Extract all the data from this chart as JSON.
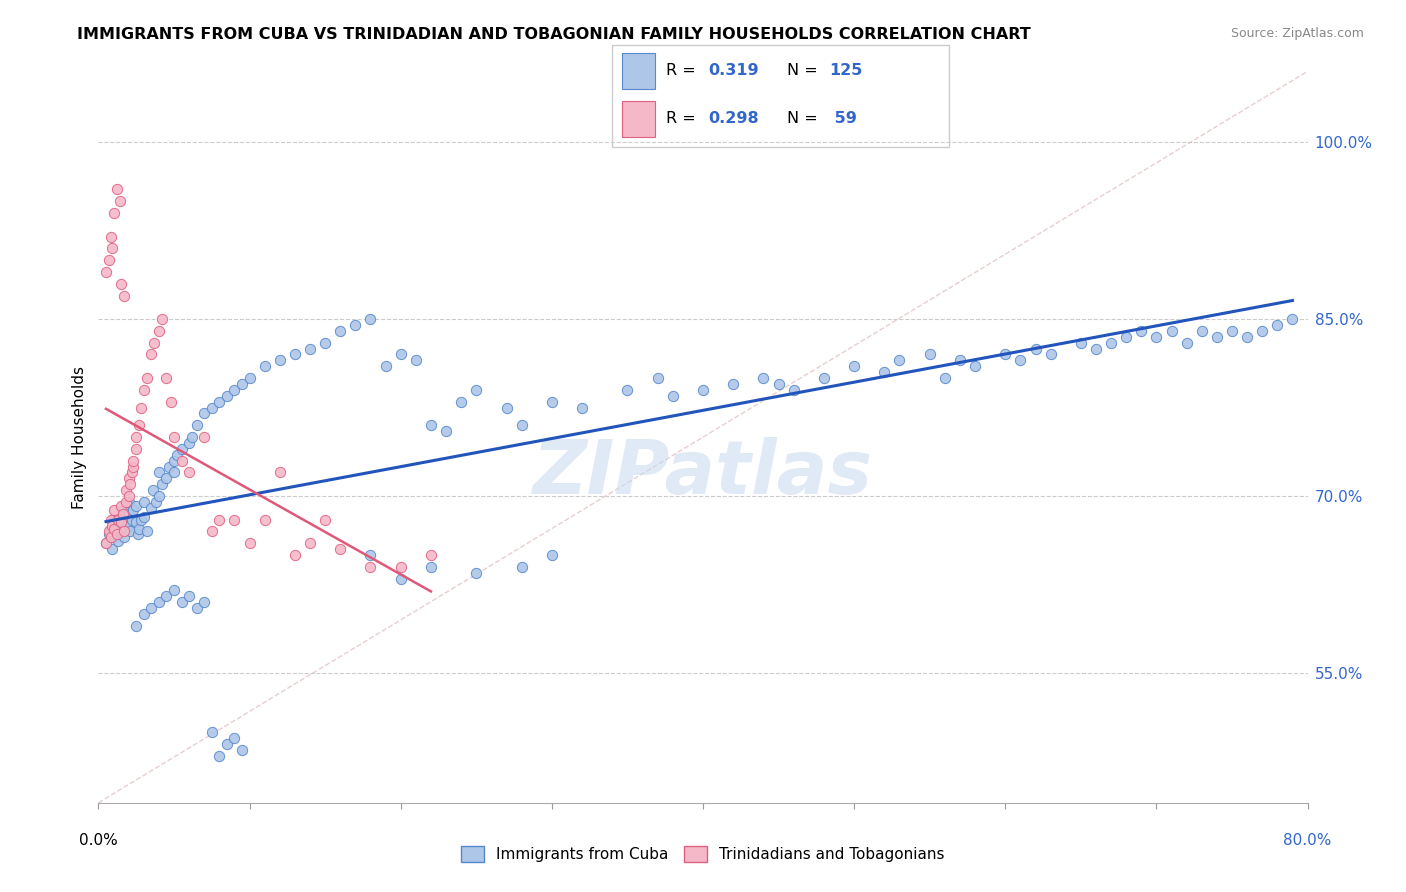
{
  "title": "IMMIGRANTS FROM CUBA VS TRINIDADIAN AND TOBAGONIAN FAMILY HOUSEHOLDS CORRELATION CHART",
  "source": "Source: ZipAtlas.com",
  "ylabel": "Family Households",
  "ytick_labels": [
    "55.0%",
    "70.0%",
    "85.0%",
    "100.0%"
  ],
  "ytick_vals": [
    0.55,
    0.7,
    0.85,
    1.0
  ],
  "xlim": [
    0.0,
    0.8
  ],
  "ylim": [
    0.44,
    1.06
  ],
  "cuba_color": "#aec6e8",
  "cuba_edge_color": "#5588cc",
  "tnt_color": "#f4b8c8",
  "tnt_edge_color": "#e06080",
  "trendline_cuba_color": "#2255bb",
  "trendline_tnt_color": "#e05878",
  "trendline_ref_color": "#ddaaaa",
  "legend_label_cuba": "Immigrants from Cuba",
  "legend_label_tnt": "Trinidadians and Tobagonians",
  "R_cuba": "0.319",
  "N_cuba": "125",
  "R_tnt": "0.298",
  "N_tnt": "59",
  "watermark": "ZIPatlas",
  "watermark_color": "#c8d8f0",
  "xtick_color": "#000000",
  "xtick_right_color": "#3366cc",
  "ytick_color": "#3366cc",
  "cuba_x": [
    0.005,
    0.007,
    0.008,
    0.009,
    0.01,
    0.01,
    0.01,
    0.012,
    0.013,
    0.015,
    0.015,
    0.016,
    0.017,
    0.018,
    0.02,
    0.02,
    0.02,
    0.021,
    0.022,
    0.023,
    0.025,
    0.025,
    0.026,
    0.027,
    0.028,
    0.03,
    0.03,
    0.032,
    0.035,
    0.036,
    0.038,
    0.04,
    0.04,
    0.042,
    0.045,
    0.047,
    0.05,
    0.05,
    0.052,
    0.055,
    0.06,
    0.062,
    0.065,
    0.07,
    0.075,
    0.08,
    0.085,
    0.09,
    0.095,
    0.1,
    0.11,
    0.12,
    0.13,
    0.14,
    0.15,
    0.16,
    0.17,
    0.18,
    0.19,
    0.2,
    0.21,
    0.22,
    0.23,
    0.24,
    0.25,
    0.27,
    0.28,
    0.3,
    0.32,
    0.35,
    0.37,
    0.38,
    0.4,
    0.42,
    0.44,
    0.45,
    0.46,
    0.48,
    0.5,
    0.52,
    0.53,
    0.55,
    0.56,
    0.57,
    0.58,
    0.6,
    0.61,
    0.62,
    0.63,
    0.65,
    0.66,
    0.67,
    0.68,
    0.69,
    0.7,
    0.71,
    0.72,
    0.73,
    0.74,
    0.75,
    0.76,
    0.77,
    0.78,
    0.79,
    0.18,
    0.2,
    0.22,
    0.25,
    0.28,
    0.3,
    0.025,
    0.03,
    0.035,
    0.04,
    0.045,
    0.05,
    0.055,
    0.06,
    0.065,
    0.07,
    0.075,
    0.08,
    0.085,
    0.09,
    0.095
  ],
  "cuba_y": [
    0.66,
    0.668,
    0.672,
    0.655,
    0.665,
    0.67,
    0.68,
    0.675,
    0.662,
    0.67,
    0.68,
    0.688,
    0.665,
    0.678,
    0.675,
    0.685,
    0.695,
    0.67,
    0.68,
    0.688,
    0.678,
    0.692,
    0.668,
    0.672,
    0.68,
    0.682,
    0.695,
    0.67,
    0.69,
    0.705,
    0.695,
    0.7,
    0.72,
    0.71,
    0.715,
    0.725,
    0.72,
    0.73,
    0.735,
    0.74,
    0.745,
    0.75,
    0.76,
    0.77,
    0.775,
    0.78,
    0.785,
    0.79,
    0.795,
    0.8,
    0.81,
    0.815,
    0.82,
    0.825,
    0.83,
    0.84,
    0.845,
    0.85,
    0.81,
    0.82,
    0.815,
    0.76,
    0.755,
    0.78,
    0.79,
    0.775,
    0.76,
    0.78,
    0.775,
    0.79,
    0.8,
    0.785,
    0.79,
    0.795,
    0.8,
    0.795,
    0.79,
    0.8,
    0.81,
    0.805,
    0.815,
    0.82,
    0.8,
    0.815,
    0.81,
    0.82,
    0.815,
    0.825,
    0.82,
    0.83,
    0.825,
    0.83,
    0.835,
    0.84,
    0.835,
    0.84,
    0.83,
    0.84,
    0.835,
    0.84,
    0.835,
    0.84,
    0.845,
    0.85,
    0.65,
    0.63,
    0.64,
    0.635,
    0.64,
    0.65,
    0.59,
    0.6,
    0.605,
    0.61,
    0.615,
    0.62,
    0.61,
    0.615,
    0.605,
    0.61,
    0.5,
    0.48,
    0.49,
    0.495,
    0.485
  ],
  "tnt_x": [
    0.005,
    0.007,
    0.008,
    0.008,
    0.009,
    0.01,
    0.01,
    0.012,
    0.013,
    0.015,
    0.015,
    0.016,
    0.017,
    0.018,
    0.018,
    0.02,
    0.02,
    0.021,
    0.022,
    0.023,
    0.023,
    0.025,
    0.025,
    0.027,
    0.028,
    0.03,
    0.032,
    0.035,
    0.037,
    0.04,
    0.042,
    0.045,
    0.048,
    0.05,
    0.055,
    0.06,
    0.07,
    0.075,
    0.08,
    0.09,
    0.1,
    0.11,
    0.12,
    0.13,
    0.14,
    0.15,
    0.16,
    0.18,
    0.2,
    0.22,
    0.005,
    0.007,
    0.008,
    0.009,
    0.01,
    0.012,
    0.014,
    0.015,
    0.017
  ],
  "tnt_y": [
    0.66,
    0.67,
    0.665,
    0.68,
    0.675,
    0.672,
    0.688,
    0.668,
    0.68,
    0.678,
    0.692,
    0.685,
    0.67,
    0.695,
    0.705,
    0.7,
    0.715,
    0.71,
    0.72,
    0.725,
    0.73,
    0.74,
    0.75,
    0.76,
    0.775,
    0.79,
    0.8,
    0.82,
    0.83,
    0.84,
    0.85,
    0.8,
    0.78,
    0.75,
    0.73,
    0.72,
    0.75,
    0.67,
    0.68,
    0.68,
    0.66,
    0.68,
    0.72,
    0.65,
    0.66,
    0.68,
    0.655,
    0.64,
    0.64,
    0.65,
    0.89,
    0.9,
    0.92,
    0.91,
    0.94,
    0.96,
    0.95,
    0.88,
    0.87
  ]
}
